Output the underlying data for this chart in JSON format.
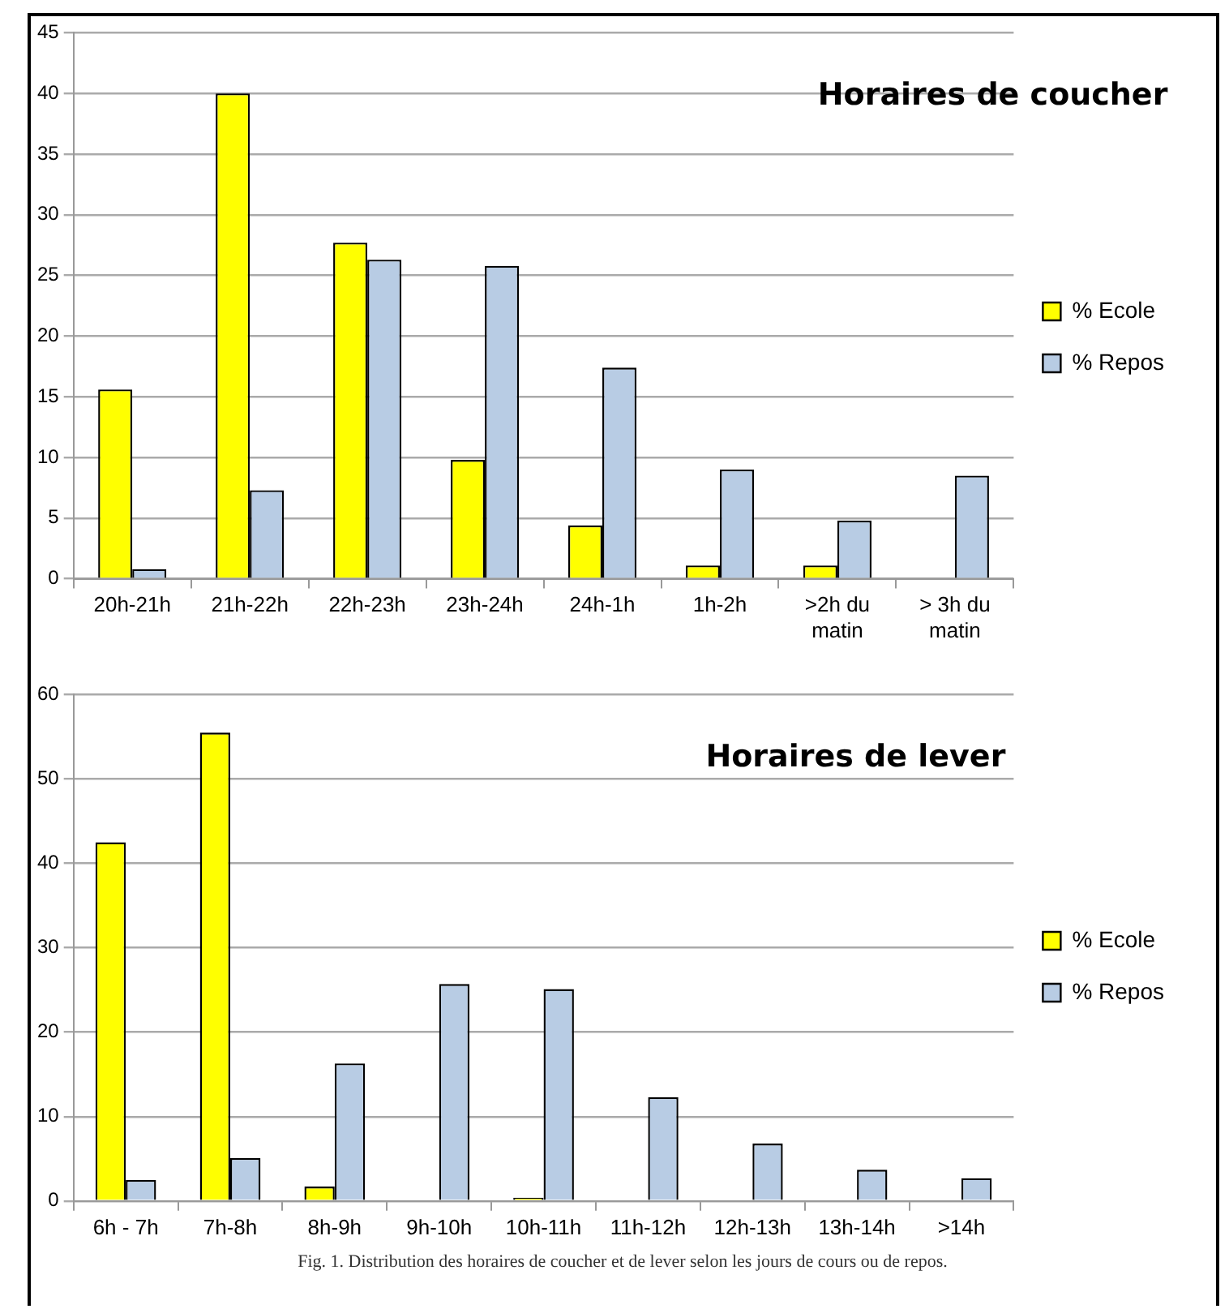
{
  "chart_data": [
    {
      "type": "bar",
      "title": "Horaires de coucher",
      "categories": [
        "20h-21h",
        "21h-22h",
        "22h-23h",
        "23h-24h",
        "24h-1h",
        "1h-2h",
        ">2h du matin",
        "> 3h du matin"
      ],
      "series": [
        {
          "name": "% Ecole",
          "color": "#ffff00",
          "values": [
            15.6,
            40,
            27.7,
            9.8,
            4.4,
            1.1,
            1.1,
            null
          ]
        },
        {
          "name": "% Repos",
          "color": "#b8cce4",
          "values": [
            0.8,
            7.3,
            26.3,
            25.8,
            17.4,
            9.0,
            4.8,
            8.5
          ]
        }
      ],
      "ylim": [
        0,
        45
      ],
      "yticks": [
        0,
        5,
        10,
        15,
        20,
        25,
        30,
        35,
        40,
        45
      ],
      "grid": "y",
      "legend": "right"
    },
    {
      "type": "bar",
      "title": "Horaires de lever",
      "categories": [
        "6h - 7h",
        "7h-8h",
        "8h-9h",
        "9h-10h",
        "10h-11h",
        "11h-12h",
        "12h-13h",
        "13h-14h",
        ">14h"
      ],
      "series": [
        {
          "name": "% Ecole",
          "color": "#ffff00",
          "values": [
            42.5,
            55.5,
            1.7,
            null,
            0.4,
            null,
            null,
            null,
            null
          ]
        },
        {
          "name": "% Repos",
          "color": "#b8cce4",
          "values": [
            2.5,
            5.1,
            16.3,
            25.7,
            25.1,
            12.3,
            6.8,
            3.7,
            2.7
          ]
        }
      ],
      "ylim": [
        0,
        60
      ],
      "yticks": [
        0,
        10,
        20,
        30,
        40,
        50,
        60
      ],
      "grid": "y",
      "legend": "right",
      "annotations": [
        "Fig. 1.  Distribution des horaires de coucher et de lever selon les jours de cours ou de repos."
      ]
    }
  ]
}
